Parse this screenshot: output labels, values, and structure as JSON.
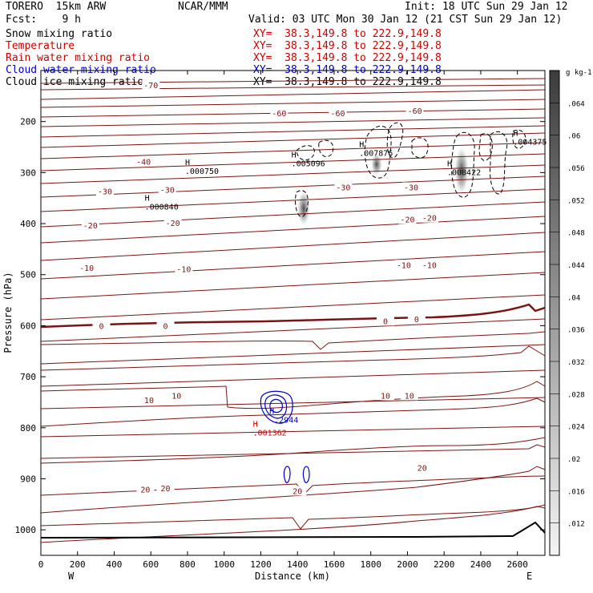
{
  "header": {
    "model": "TORERO  15km ARW",
    "center": "NCAR/MMM",
    "init": "Init: 18 UTC Sun 29 Jan 12",
    "fcst": "Fcst:    9 h",
    "valid": "Valid: 03 UTC Mon 30 Jan 12 (21 CST Sun 29 Jan 12)"
  },
  "fields": [
    {
      "name": "Snow mixing ratio",
      "xy": "XY=  38.3,149.8 to 222.9,149.8",
      "color": "#000000"
    },
    {
      "name": "Temperature",
      "xy": "XY=  38.3,149.8 to 222.9,149.8",
      "color": "#cc0000"
    },
    {
      "name": "Rain water mixing ratio",
      "xy": "XY=  38.3,149.8 to 222.9,149.8",
      "color": "#cc0000"
    },
    {
      "name": "Cloud water mixing ratio",
      "xy": "XY=  38.3,149.8 to 222.9,149.8",
      "color": "#0000cc"
    },
    {
      "name": "Cloud ice mixing ratio",
      "xy": "XY=  38.3,149.8 to 222.9,149.8",
      "color": "#000000"
    }
  ],
  "colors": {
    "temperature": "#7a1414",
    "zero_isotherm": "#7a1414",
    "cloud_water": "#0000cc",
    "rain_label": "#cc0000",
    "ground": "#000000"
  },
  "chart_data": {
    "type": "cross-section",
    "xlabel": "Distance (km)",
    "ylabel": "Pressure (hPa)",
    "xlim": [
      0,
      2750
    ],
    "ylim": [
      1050,
      100
    ],
    "xticks": [
      0,
      200,
      400,
      600,
      800,
      1000,
      1200,
      1400,
      1600,
      1800,
      2000,
      2200,
      2400,
      2600
    ],
    "yticks": [
      200,
      300,
      400,
      500,
      600,
      700,
      800,
      900,
      1000
    ],
    "x_endpoints": {
      "left": "W",
      "right": "E"
    },
    "colorbar": {
      "unit": "g kg-1",
      "ticks": [
        ".012",
        ".016",
        ".02",
        ".024",
        ".028",
        ".032",
        ".036",
        ".04",
        ".044",
        ".048",
        ".052",
        ".056",
        ".06",
        ".064"
      ],
      "min": 0.008,
      "max": 0.068
    },
    "temperature_labels": [
      {
        "text": "-70",
        "x": 600,
        "p": 130
      },
      {
        "text": "-60",
        "x": 1300,
        "p": 185
      },
      {
        "text": "-60",
        "x": 1620,
        "p": 185
      },
      {
        "text": "-60",
        "x": 2040,
        "p": 180
      },
      {
        "text": "-40",
        "x": 560,
        "p": 280
      },
      {
        "text": "-30",
        "x": 350,
        "p": 338
      },
      {
        "text": "-30",
        "x": 690,
        "p": 335
      },
      {
        "text": "-30",
        "x": 1650,
        "p": 330
      },
      {
        "text": "-30",
        "x": 2020,
        "p": 330
      },
      {
        "text": "-20",
        "x": 270,
        "p": 405
      },
      {
        "text": "-20",
        "x": 720,
        "p": 400
      },
      {
        "text": "-20",
        "x": 2000,
        "p": 393
      },
      {
        "text": "-20",
        "x": 2120,
        "p": 390
      },
      {
        "text": "-10",
        "x": 250,
        "p": 488
      },
      {
        "text": "-10",
        "x": 780,
        "p": 490
      },
      {
        "text": "-10",
        "x": 1980,
        "p": 482
      },
      {
        "text": "-10",
        "x": 2120,
        "p": 482
      },
      {
        "text": "0",
        "x": 330,
        "p": 602
      },
      {
        "text": "0",
        "x": 680,
        "p": 602
      },
      {
        "text": "0",
        "x": 1880,
        "p": 592
      },
      {
        "text": "0",
        "x": 2050,
        "p": 588
      },
      {
        "text": "10",
        "x": 590,
        "p": 747
      },
      {
        "text": "10",
        "x": 740,
        "p": 738
      },
      {
        "text": "10",
        "x": 1880,
        "p": 738
      },
      {
        "text": "10",
        "x": 2010,
        "p": 738
      },
      {
        "text": "20",
        "x": 570,
        "p": 922
      },
      {
        "text": "20",
        "x": 680,
        "p": 920
      },
      {
        "text": "20",
        "x": 1400,
        "p": 925
      },
      {
        "text": "20",
        "x": 2080,
        "p": 880
      }
    ],
    "extrema_labels": [
      {
        "text": "H",
        "value": ".000840",
        "x": 580,
        "p": 355,
        "color": "#000000"
      },
      {
        "text": "H",
        "value": ".000750",
        "x": 800,
        "p": 285,
        "color": "#000000"
      },
      {
        "text": "H",
        "value": ".005096",
        "x": 1380,
        "p": 270,
        "color": "#000000"
      },
      {
        "text": "H",
        "value": ".007876",
        "x": 1750,
        "p": 250,
        "color": "#000000"
      },
      {
        "text": "H",
        "value": ".008422",
        "x": 2230,
        "p": 288,
        "color": "#000000"
      },
      {
        "text": "H",
        "value": ".004375",
        "x": 2590,
        "p": 228,
        "color": "#000000"
      },
      {
        "text": "H",
        "value": ".2944",
        "x": 1260,
        "p": 773,
        "color": "#0000cc"
      },
      {
        "text": "H",
        "value": ".001362",
        "x": 1170,
        "p": 798,
        "color": "#cc0000"
      }
    ]
  }
}
